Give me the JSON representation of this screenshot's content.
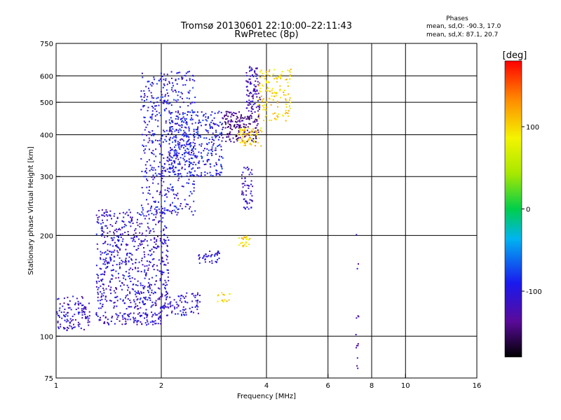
{
  "chart_data": {
    "type": "scatter",
    "title": "Tromsø 20130601 22:10:00–22:11:43",
    "subtitle": "RwPretec (8p)",
    "xlabel": "Frequency [MHz]",
    "ylabel": "Stationary phase Virtual Height [km]",
    "x_scale": "log",
    "y_scale": "log",
    "xlim": [
      1,
      16
    ],
    "ylim": [
      75,
      750
    ],
    "x_ticks": [
      1,
      2,
      4,
      6,
      8,
      10,
      16
    ],
    "y_ticks": [
      75,
      100,
      200,
      300,
      400,
      500,
      600,
      750
    ],
    "x_grid": [
      2,
      4,
      6,
      8,
      10
    ],
    "y_grid": [
      100,
      200,
      300,
      400,
      500,
      600
    ],
    "phase_header": "Phases",
    "phase_stats": [
      "mean, sd,O: -90.3, 17.0",
      "mean, sd,X:  87.1, 20.7"
    ],
    "colorbar": {
      "label": "[deg]",
      "range": [
        -180,
        180
      ],
      "ticks": [
        100,
        0,
        -100
      ]
    },
    "clusters": [
      {
        "f": [
          1.0,
          1.25
        ],
        "h": [
          104,
          132
        ],
        "n": 120,
        "phase": -110
      },
      {
        "f": [
          1.3,
          2.0
        ],
        "h": [
          108,
          118
        ],
        "n": 110,
        "phase": -110
      },
      {
        "f": [
          1.3,
          2.1
        ],
        "h": [
          120,
          240
        ],
        "n": 650,
        "phase": -105
      },
      {
        "f": [
          1.75,
          2.5
        ],
        "h": [
          230,
          620
        ],
        "n": 480,
        "phase": -100
      },
      {
        "f": [
          2.1,
          3.0
        ],
        "h": [
          300,
          470
        ],
        "n": 380,
        "phase": -95
      },
      {
        "f": [
          2.0,
          2.6
        ],
        "h": [
          115,
          135
        ],
        "n": 90,
        "phase": -110
      },
      {
        "f": [
          3.0,
          3.8
        ],
        "h": [
          380,
          470
        ],
        "n": 170,
        "phase": -140
      },
      {
        "f": [
          3.5,
          3.85
        ],
        "h": [
          470,
          640
        ],
        "n": 100,
        "phase": -120
      },
      {
        "f": [
          3.4,
          3.65
        ],
        "h": [
          240,
          320
        ],
        "n": 55,
        "phase": -115
      },
      {
        "f": [
          3.3,
          3.9
        ],
        "h": [
          370,
          420
        ],
        "n": 70,
        "phase": 105
      },
      {
        "f": [
          3.8,
          4.7
        ],
        "h": [
          440,
          630
        ],
        "n": 130,
        "phase": 100
      },
      {
        "f": [
          3.3,
          3.6
        ],
        "h": [
          185,
          200
        ],
        "n": 25,
        "phase": 98
      },
      {
        "f": [
          2.55,
          2.95
        ],
        "h": [
          165,
          180
        ],
        "n": 40,
        "phase": -100
      },
      {
        "f": [
          2.9,
          3.15
        ],
        "h": [
          125,
          135
        ],
        "n": 15,
        "phase": 100
      },
      {
        "f": [
          7.2,
          7.35
        ],
        "h": [
          78,
          210
        ],
        "n": 14,
        "phase": -120
      }
    ]
  }
}
